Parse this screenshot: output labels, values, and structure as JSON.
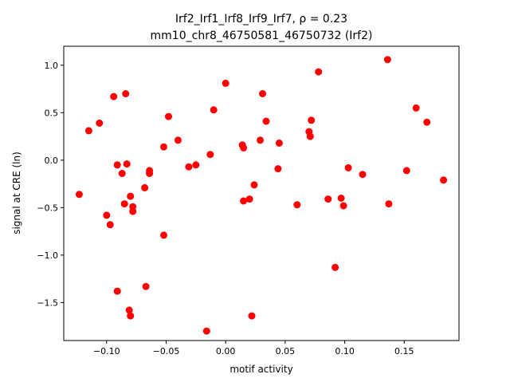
{
  "chart_data": {
    "type": "scatter",
    "title_line1": "Irf2_Irf1_Irf8_Irf9_Irf7, ρ = 0.23",
    "title_line2": "mm10_chr8_46750581_46750732 (Irf2)",
    "xlabel": "motif activity",
    "ylabel": "signal at CRE (ln)",
    "xlim": [
      -0.136,
      0.196
    ],
    "ylim": [
      -1.9,
      1.2
    ],
    "xticks": [
      {
        "value": -0.1,
        "label": "−0.10"
      },
      {
        "value": -0.05,
        "label": "−0.05"
      },
      {
        "value": 0.0,
        "label": "0.00"
      },
      {
        "value": 0.05,
        "label": "0.05"
      },
      {
        "value": 0.1,
        "label": "0.10"
      },
      {
        "value": 0.15,
        "label": "0.15"
      }
    ],
    "yticks": [
      {
        "value": -1.5,
        "label": "−1.5"
      },
      {
        "value": -1.0,
        "label": "−1.0"
      },
      {
        "value": -0.5,
        "label": "−0.5"
      },
      {
        "value": 0.0,
        "label": "0.0"
      },
      {
        "value": 0.5,
        "label": "0.5"
      },
      {
        "value": 1.0,
        "label": "1.0"
      }
    ],
    "marker_color": "#ff0000",
    "grid": false,
    "points": [
      {
        "x": -0.123,
        "y": -0.36
      },
      {
        "x": -0.115,
        "y": 0.31
      },
      {
        "x": -0.106,
        "y": 0.39
      },
      {
        "x": -0.1,
        "y": -0.58
      },
      {
        "x": -0.097,
        "y": -0.68
      },
      {
        "x": -0.094,
        "y": 0.67
      },
      {
        "x": -0.091,
        "y": -0.05
      },
      {
        "x": -0.091,
        "y": -1.38
      },
      {
        "x": -0.087,
        "y": -0.14
      },
      {
        "x": -0.085,
        "y": -0.46
      },
      {
        "x": -0.084,
        "y": 0.7
      },
      {
        "x": -0.083,
        "y": -0.04
      },
      {
        "x": -0.081,
        "y": -1.58
      },
      {
        "x": -0.08,
        "y": -1.64
      },
      {
        "x": -0.08,
        "y": -0.38
      },
      {
        "x": -0.078,
        "y": -0.49
      },
      {
        "x": -0.078,
        "y": -0.54
      },
      {
        "x": -0.068,
        "y": -0.29
      },
      {
        "x": -0.067,
        "y": -1.33
      },
      {
        "x": -0.064,
        "y": -0.11
      },
      {
        "x": -0.064,
        "y": -0.14
      },
      {
        "x": -0.052,
        "y": 0.14
      },
      {
        "x": -0.052,
        "y": -0.79
      },
      {
        "x": -0.048,
        "y": 0.46
      },
      {
        "x": -0.04,
        "y": 0.21
      },
      {
        "x": -0.031,
        "y": -0.07
      },
      {
        "x": -0.025,
        "y": -0.05
      },
      {
        "x": -0.016,
        "y": -1.8
      },
      {
        "x": -0.013,
        "y": 0.06
      },
      {
        "x": -0.01,
        "y": 0.53
      },
      {
        "x": 0.0,
        "y": 0.81
      },
      {
        "x": 0.014,
        "y": 0.16
      },
      {
        "x": 0.015,
        "y": 0.13
      },
      {
        "x": 0.015,
        "y": -0.43
      },
      {
        "x": 0.02,
        "y": -0.41
      },
      {
        "x": 0.022,
        "y": -1.64
      },
      {
        "x": 0.024,
        "y": -0.26
      },
      {
        "x": 0.029,
        "y": 0.21
      },
      {
        "x": 0.031,
        "y": 0.7
      },
      {
        "x": 0.034,
        "y": 0.41
      },
      {
        "x": 0.044,
        "y": -0.09
      },
      {
        "x": 0.045,
        "y": 0.18
      },
      {
        "x": 0.06,
        "y": -0.47
      },
      {
        "x": 0.07,
        "y": 0.3
      },
      {
        "x": 0.071,
        "y": 0.25
      },
      {
        "x": 0.072,
        "y": 0.42
      },
      {
        "x": 0.078,
        "y": 0.93
      },
      {
        "x": 0.086,
        "y": -0.41
      },
      {
        "x": 0.092,
        "y": -1.13
      },
      {
        "x": 0.097,
        "y": -0.4
      },
      {
        "x": 0.099,
        "y": -0.48
      },
      {
        "x": 0.103,
        "y": -0.08
      },
      {
        "x": 0.115,
        "y": -0.15
      },
      {
        "x": 0.136,
        "y": 1.06
      },
      {
        "x": 0.137,
        "y": -0.46
      },
      {
        "x": 0.152,
        "y": -0.11
      },
      {
        "x": 0.16,
        "y": 0.55
      },
      {
        "x": 0.169,
        "y": 0.4
      },
      {
        "x": 0.183,
        "y": -0.21
      }
    ]
  }
}
